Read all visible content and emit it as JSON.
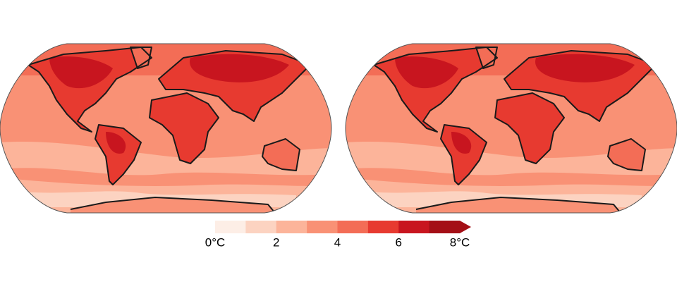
{
  "colorbar": {
    "range": [
      0,
      8
    ],
    "ticks": [
      {
        "value": 0,
        "label": "0°C"
      },
      2,
      4,
      6,
      {
        "value": 8,
        "label": "8°C"
      }
    ],
    "colors": [
      "#fdeee6",
      "#fcd3c1",
      "#fcb49a",
      "#f99175",
      "#f36d56",
      "#e73a30",
      "#c8151f",
      "#a40f16"
    ],
    "extend": "max"
  }
}
